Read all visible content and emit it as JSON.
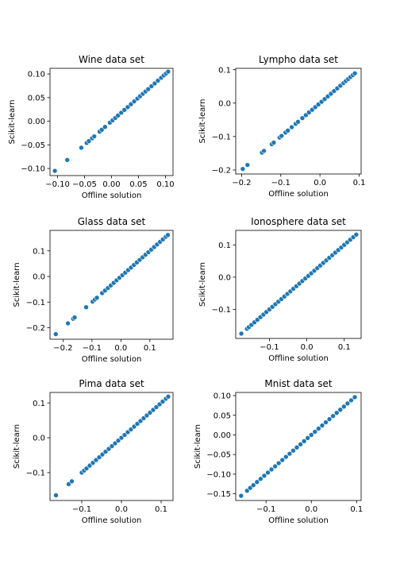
{
  "chart_data": [
    {
      "type": "scatter",
      "title": "Wine data set",
      "xlabel": "Offline solution",
      "ylabel": "Scikit-learn",
      "xlim": [
        -0.114,
        0.114
      ],
      "ylim": [
        -0.115,
        0.112
      ],
      "xticks": [
        -0.1,
        -0.05,
        0.0,
        0.05,
        0.1
      ],
      "xtick_labels": [
        "−0.10",
        "−0.05",
        "0.00",
        "0.05",
        "0.10"
      ],
      "yticks": [
        -0.1,
        -0.05,
        0.0,
        0.05,
        0.1
      ],
      "ytick_labels": [
        "−0.10",
        "−0.05",
        "0.00",
        "0.05",
        "0.10"
      ],
      "grid": false,
      "color": "#1f77b4",
      "x": [
        -0.105,
        -0.082,
        -0.056,
        -0.046,
        -0.042,
        -0.036,
        -0.032,
        -0.022,
        -0.018,
        -0.012,
        -0.003,
        0.002,
        0.007,
        0.012,
        0.018,
        0.024,
        0.03,
        0.036,
        0.042,
        0.048,
        0.053,
        0.058,
        0.063,
        0.068,
        0.074,
        0.08,
        0.086,
        0.092,
        0.097,
        0.101,
        0.105
      ],
      "y": [
        -0.105,
        -0.082,
        -0.056,
        -0.046,
        -0.042,
        -0.036,
        -0.032,
        -0.022,
        -0.018,
        -0.012,
        -0.003,
        0.002,
        0.007,
        0.012,
        0.018,
        0.024,
        0.03,
        0.036,
        0.042,
        0.048,
        0.053,
        0.058,
        0.063,
        0.068,
        0.074,
        0.08,
        0.086,
        0.092,
        0.097,
        0.101,
        0.105
      ]
    },
    {
      "type": "scatter",
      "title": "Lympho data set",
      "xlabel": "Offline solution",
      "ylabel": "Scikit-learn",
      "xlim": [
        -0.215,
        0.105
      ],
      "ylim": [
        -0.212,
        0.104
      ],
      "xticks": [
        -0.2,
        -0.1,
        0.0,
        0.1
      ],
      "xtick_labels": [
        "−0.2",
        "−0.1",
        "0.0",
        "0.1"
      ],
      "yticks": [
        -0.2,
        -0.1,
        0.0,
        0.1
      ],
      "ytick_labels": [
        "−0.2",
        "−0.1",
        "0.0",
        "0.1"
      ],
      "grid": false,
      "color": "#1f77b4",
      "x": [
        -0.197,
        -0.185,
        -0.148,
        -0.143,
        -0.123,
        -0.118,
        -0.103,
        -0.098,
        -0.088,
        -0.082,
        -0.072,
        -0.062,
        -0.056,
        -0.045,
        -0.036,
        -0.028,
        -0.02,
        -0.012,
        -0.004,
        0.004,
        0.012,
        0.02,
        0.028,
        0.036,
        0.044,
        0.052,
        0.06,
        0.066,
        0.072,
        0.078,
        0.084,
        0.089
      ],
      "y": [
        -0.197,
        -0.185,
        -0.148,
        -0.143,
        -0.123,
        -0.118,
        -0.103,
        -0.098,
        -0.088,
        -0.082,
        -0.072,
        -0.062,
        -0.056,
        -0.045,
        -0.036,
        -0.028,
        -0.02,
        -0.012,
        -0.004,
        0.004,
        0.012,
        0.02,
        0.028,
        0.036,
        0.044,
        0.052,
        0.06,
        0.066,
        0.072,
        0.078,
        0.084,
        0.089
      ]
    },
    {
      "type": "scatter",
      "title": "Glass data set",
      "xlabel": "Offline solution",
      "ylabel": "Scikit-learn",
      "xlim": [
        -0.245,
        0.18
      ],
      "ylim": [
        -0.245,
        0.18
      ],
      "xticks": [
        -0.2,
        -0.1,
        0.0,
        0.1
      ],
      "xtick_labels": [
        "−0.2",
        "−0.1",
        "0.0",
        "0.1"
      ],
      "yticks": [
        -0.2,
        -0.1,
        0.0,
        0.1
      ],
      "ytick_labels": [
        "−0.2",
        "−0.1",
        "0.0",
        "0.1"
      ],
      "grid": false,
      "color": "#1f77b4",
      "x": [
        -0.225,
        -0.183,
        -0.165,
        -0.16,
        -0.12,
        -0.098,
        -0.09,
        -0.083,
        -0.065,
        -0.055,
        -0.045,
        -0.035,
        -0.025,
        -0.015,
        -0.005,
        0.005,
        0.015,
        0.025,
        0.035,
        0.045,
        0.055,
        0.065,
        0.075,
        0.085,
        0.095,
        0.105,
        0.115,
        0.125,
        0.135,
        0.145,
        0.155,
        0.162
      ],
      "y": [
        -0.225,
        -0.183,
        -0.165,
        -0.16,
        -0.12,
        -0.098,
        -0.09,
        -0.083,
        -0.065,
        -0.055,
        -0.045,
        -0.035,
        -0.025,
        -0.015,
        -0.005,
        0.005,
        0.015,
        0.025,
        0.035,
        0.045,
        0.055,
        0.065,
        0.075,
        0.085,
        0.095,
        0.105,
        0.115,
        0.125,
        0.135,
        0.145,
        0.155,
        0.162
      ]
    },
    {
      "type": "scatter",
      "title": "Ionosphere data set",
      "xlabel": "Offline solution",
      "ylabel": "Scikit-learn",
      "xlim": [
        -0.19,
        0.145
      ],
      "ylim": [
        -0.19,
        0.145
      ],
      "xticks": [
        -0.1,
        0.0,
        0.1
      ],
      "xtick_labels": [
        "−0.1",
        "0.0",
        "0.1"
      ],
      "yticks": [
        -0.1,
        0.0,
        0.1
      ],
      "ytick_labels": [
        "−0.1",
        "0.0",
        "0.1"
      ],
      "grid": false,
      "color": "#1f77b4",
      "x": [
        -0.175,
        -0.16,
        -0.155,
        -0.148,
        -0.14,
        -0.132,
        -0.124,
        -0.116,
        -0.108,
        -0.1,
        -0.092,
        -0.084,
        -0.076,
        -0.068,
        -0.06,
        -0.052,
        -0.044,
        -0.036,
        -0.028,
        -0.02,
        -0.012,
        -0.004,
        0.004,
        0.012,
        0.02,
        0.028,
        0.036,
        0.044,
        0.052,
        0.06,
        0.068,
        0.076,
        0.084,
        0.092,
        0.1,
        0.108,
        0.116,
        0.124,
        0.132
      ],
      "y": [
        -0.175,
        -0.16,
        -0.155,
        -0.148,
        -0.14,
        -0.132,
        -0.124,
        -0.116,
        -0.108,
        -0.1,
        -0.092,
        -0.084,
        -0.076,
        -0.068,
        -0.06,
        -0.052,
        -0.044,
        -0.036,
        -0.028,
        -0.02,
        -0.012,
        -0.004,
        0.004,
        0.012,
        0.02,
        0.028,
        0.036,
        0.044,
        0.052,
        0.06,
        0.068,
        0.076,
        0.084,
        0.092,
        0.1,
        0.108,
        0.116,
        0.124,
        0.132
      ]
    },
    {
      "type": "scatter",
      "title": "Pima data set",
      "xlabel": "Offline solution",
      "ylabel": "Scikit-learn",
      "xlim": [
        -0.18,
        0.13
      ],
      "ylim": [
        -0.18,
        0.13
      ],
      "xticks": [
        -0.1,
        0.0,
        0.1
      ],
      "xtick_labels": [
        "−0.1",
        "0.0",
        "0.1"
      ],
      "yticks": [
        -0.1,
        0.0,
        0.1
      ],
      "ytick_labels": [
        "−0.1",
        "0.0",
        "0.1"
      ],
      "grid": false,
      "color": "#1f77b4",
      "x": [
        -0.165,
        -0.133,
        -0.125,
        -0.1,
        -0.094,
        -0.088,
        -0.08,
        -0.072,
        -0.064,
        -0.056,
        -0.048,
        -0.04,
        -0.032,
        -0.024,
        -0.016,
        -0.008,
        0.0,
        0.008,
        0.016,
        0.024,
        0.032,
        0.04,
        0.048,
        0.056,
        0.064,
        0.072,
        0.08,
        0.088,
        0.096,
        0.104,
        0.112,
        0.118
      ],
      "y": [
        -0.165,
        -0.133,
        -0.125,
        -0.1,
        -0.094,
        -0.088,
        -0.08,
        -0.072,
        -0.064,
        -0.056,
        -0.048,
        -0.04,
        -0.032,
        -0.024,
        -0.016,
        -0.008,
        0.0,
        0.008,
        0.016,
        0.024,
        0.032,
        0.04,
        0.048,
        0.056,
        0.064,
        0.072,
        0.08,
        0.088,
        0.096,
        0.104,
        0.112,
        0.118
      ]
    },
    {
      "type": "scatter",
      "title": "Mnist data set",
      "xlabel": "Offline solution",
      "ylabel": "Scikit-learn",
      "xlim": [
        -0.167,
        0.11
      ],
      "ylim": [
        -0.167,
        0.108
      ],
      "xticks": [
        -0.1,
        0.0,
        0.1
      ],
      "xtick_labels": [
        "−0.1",
        "0.0",
        "0.1"
      ],
      "yticks": [
        -0.15,
        -0.1,
        -0.05,
        0.0,
        0.05,
        0.1
      ],
      "ytick_labels": [
        "−0.15",
        "−0.10",
        "−0.05",
        "0.00",
        "0.05",
        "0.10"
      ],
      "grid": false,
      "color": "#1f77b4",
      "x": [
        -0.155,
        -0.142,
        -0.135,
        -0.128,
        -0.12,
        -0.112,
        -0.104,
        -0.096,
        -0.088,
        -0.08,
        -0.072,
        -0.064,
        -0.056,
        -0.048,
        -0.04,
        -0.032,
        -0.024,
        -0.016,
        -0.008,
        0.0,
        0.008,
        0.016,
        0.024,
        0.032,
        0.04,
        0.048,
        0.056,
        0.064,
        0.072,
        0.08,
        0.088,
        0.096
      ],
      "y": [
        -0.155,
        -0.142,
        -0.135,
        -0.128,
        -0.12,
        -0.112,
        -0.104,
        -0.096,
        -0.088,
        -0.08,
        -0.072,
        -0.064,
        -0.056,
        -0.048,
        -0.04,
        -0.032,
        -0.024,
        -0.016,
        -0.008,
        0.0,
        0.008,
        0.016,
        0.024,
        0.032,
        0.04,
        0.048,
        0.056,
        0.064,
        0.072,
        0.08,
        0.088,
        0.096
      ]
    }
  ]
}
